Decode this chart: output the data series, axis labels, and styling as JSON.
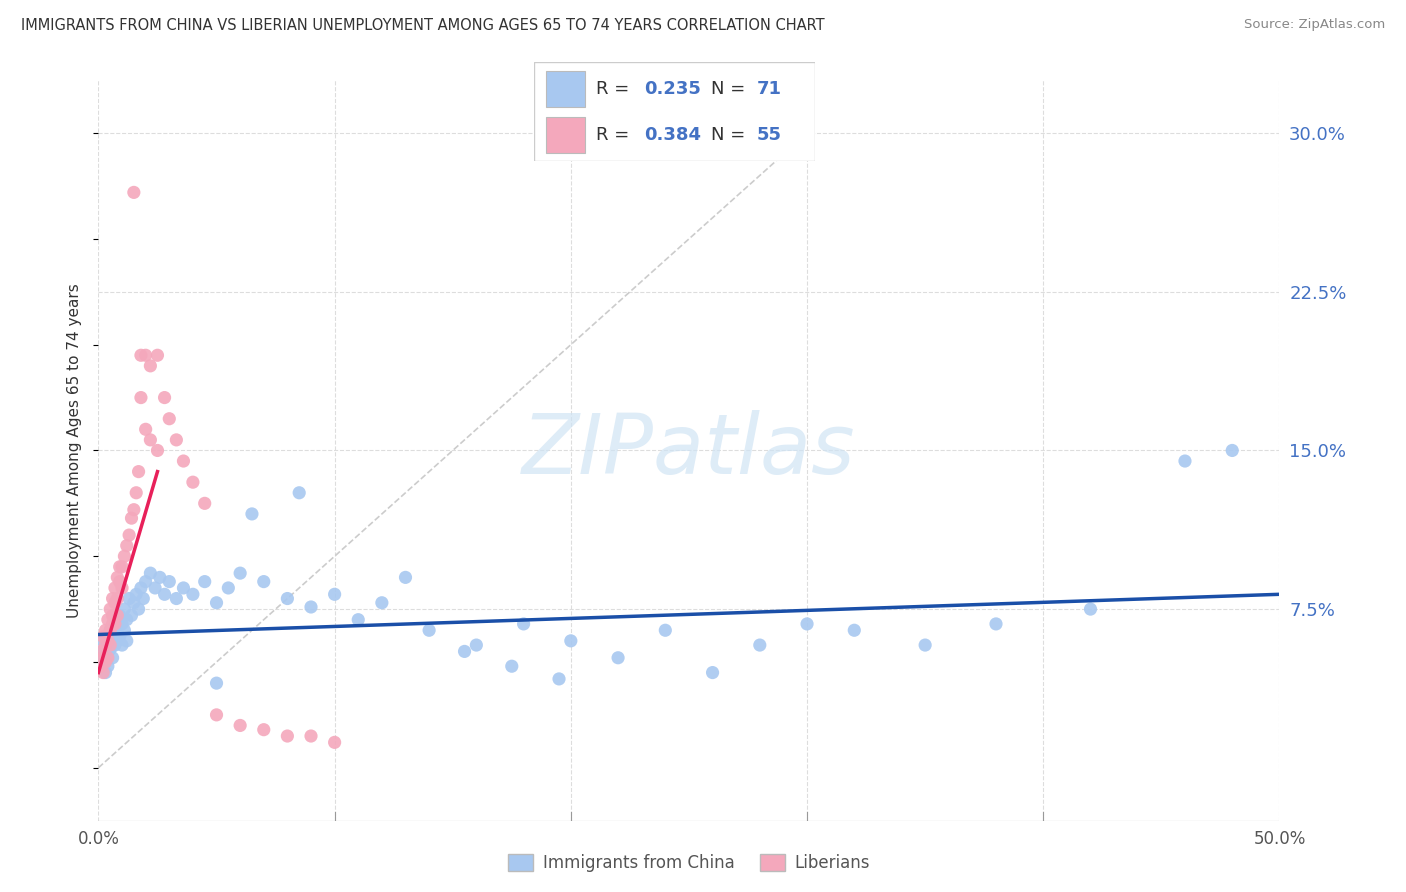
{
  "title": "IMMIGRANTS FROM CHINA VS LIBERIAN UNEMPLOYMENT AMONG AGES 65 TO 74 YEARS CORRELATION CHART",
  "source": "Source: ZipAtlas.com",
  "ylabel": "Unemployment Among Ages 65 to 74 years",
  "xlim": [
    0.0,
    0.5
  ],
  "ylim": [
    -0.025,
    0.325
  ],
  "ytick_vals": [
    0.0,
    0.075,
    0.15,
    0.225,
    0.3
  ],
  "ytick_labels": [
    "",
    "7.5%",
    "15.0%",
    "22.5%",
    "30.0%"
  ],
  "blue_color": "#A8C8F0",
  "pink_color": "#F4A8BC",
  "blue_line_color": "#1A4FA8",
  "pink_line_color": "#E8205A",
  "diagonal_color": "#CCCCCC",
  "watermark_color": "#D0E4F4",
  "blue_scatter_x": [
    0.001,
    0.002,
    0.002,
    0.003,
    0.003,
    0.004,
    0.004,
    0.005,
    0.005,
    0.006,
    0.006,
    0.007,
    0.007,
    0.008,
    0.008,
    0.009,
    0.009,
    0.01,
    0.01,
    0.011,
    0.011,
    0.012,
    0.012,
    0.013,
    0.014,
    0.015,
    0.016,
    0.017,
    0.018,
    0.019,
    0.02,
    0.022,
    0.024,
    0.026,
    0.028,
    0.03,
    0.033,
    0.036,
    0.04,
    0.045,
    0.05,
    0.055,
    0.06,
    0.07,
    0.08,
    0.09,
    0.1,
    0.11,
    0.12,
    0.14,
    0.16,
    0.18,
    0.2,
    0.22,
    0.24,
    0.26,
    0.28,
    0.3,
    0.32,
    0.35,
    0.38,
    0.42,
    0.46,
    0.48,
    0.05,
    0.065,
    0.085,
    0.13,
    0.155,
    0.175,
    0.195
  ],
  "blue_scatter_y": [
    0.055,
    0.06,
    0.05,
    0.058,
    0.045,
    0.062,
    0.048,
    0.056,
    0.065,
    0.06,
    0.052,
    0.067,
    0.058,
    0.07,
    0.06,
    0.072,
    0.062,
    0.068,
    0.058,
    0.075,
    0.065,
    0.07,
    0.06,
    0.08,
    0.072,
    0.078,
    0.082,
    0.075,
    0.085,
    0.08,
    0.088,
    0.092,
    0.085,
    0.09,
    0.082,
    0.088,
    0.08,
    0.085,
    0.082,
    0.088,
    0.078,
    0.085,
    0.092,
    0.088,
    0.08,
    0.076,
    0.082,
    0.07,
    0.078,
    0.065,
    0.058,
    0.068,
    0.06,
    0.052,
    0.065,
    0.045,
    0.058,
    0.068,
    0.065,
    0.058,
    0.068,
    0.075,
    0.145,
    0.15,
    0.04,
    0.12,
    0.13,
    0.09,
    0.055,
    0.048,
    0.042
  ],
  "pink_scatter_x": [
    0.001,
    0.001,
    0.002,
    0.002,
    0.002,
    0.003,
    0.003,
    0.003,
    0.004,
    0.004,
    0.004,
    0.005,
    0.005,
    0.005,
    0.006,
    0.006,
    0.006,
    0.007,
    0.007,
    0.007,
    0.008,
    0.008,
    0.008,
    0.009,
    0.009,
    0.01,
    0.01,
    0.011,
    0.012,
    0.013,
    0.014,
    0.015,
    0.016,
    0.017,
    0.018,
    0.02,
    0.022,
    0.025,
    0.028,
    0.03,
    0.033,
    0.036,
    0.04,
    0.045,
    0.05,
    0.06,
    0.07,
    0.08,
    0.09,
    0.1,
    0.015,
    0.018,
    0.02,
    0.022,
    0.025
  ],
  "pink_scatter_y": [
    0.055,
    0.048,
    0.062,
    0.052,
    0.045,
    0.058,
    0.05,
    0.065,
    0.06,
    0.052,
    0.07,
    0.065,
    0.058,
    0.075,
    0.068,
    0.08,
    0.072,
    0.078,
    0.068,
    0.085,
    0.08,
    0.09,
    0.072,
    0.088,
    0.095,
    0.095,
    0.085,
    0.1,
    0.105,
    0.11,
    0.118,
    0.122,
    0.13,
    0.14,
    0.175,
    0.195,
    0.19,
    0.195,
    0.175,
    0.165,
    0.155,
    0.145,
    0.135,
    0.125,
    0.025,
    0.02,
    0.018,
    0.015,
    0.015,
    0.012,
    0.272,
    0.195,
    0.16,
    0.155,
    0.15
  ],
  "blue_trend_slope": 0.045,
  "blue_trend_intercept": 0.062,
  "pink_trend_slope": 1.8,
  "pink_trend_intercept": 0.045
}
